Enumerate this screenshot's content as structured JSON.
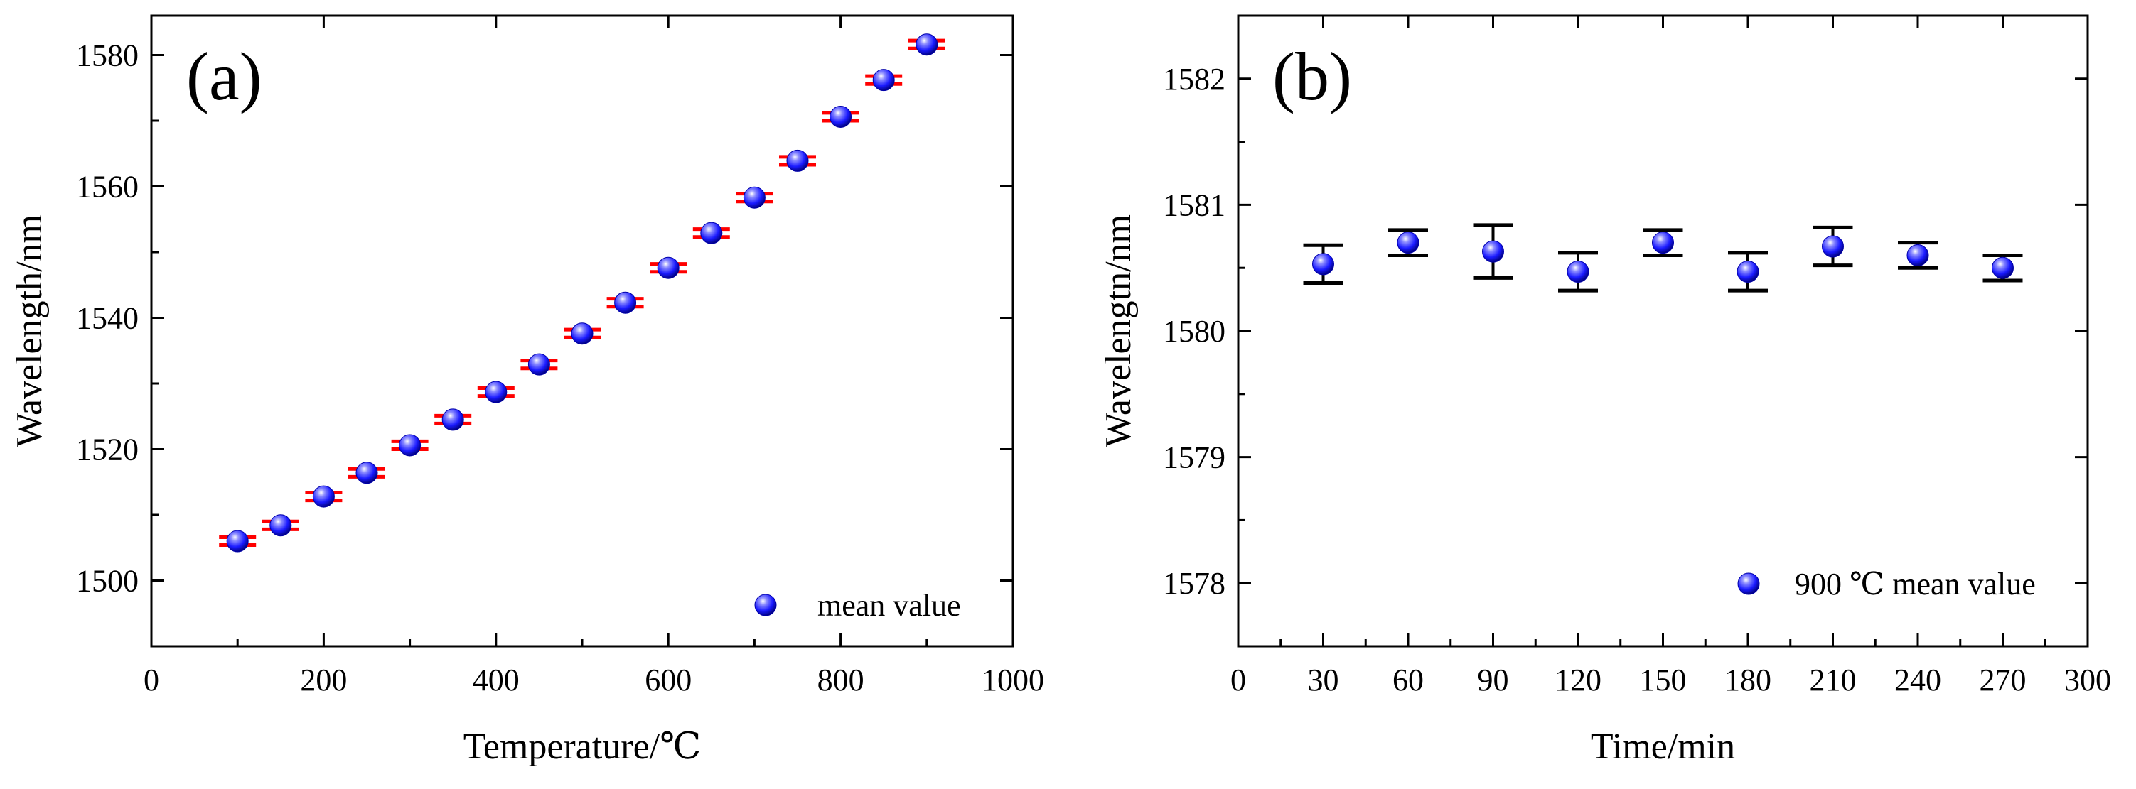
{
  "chart_data": [
    {
      "type": "scatter",
      "panel_label": "(a)",
      "xlabel": "Temperature/℃",
      "ylabel": "Wavelength/nm",
      "xlim": [
        0,
        1000
      ],
      "ylim": [
        1490,
        1586
      ],
      "x_ticks": [
        "0",
        "200",
        "400",
        "600",
        "800",
        "1000"
      ],
      "y_ticks": [
        "1500",
        "1520",
        "1540",
        "1560",
        "1580"
      ],
      "legend": "mean value",
      "legend_position": "bottom-right",
      "marker_color": "#1a1aff",
      "error_color": "#ff0000",
      "series": [
        {
          "name": "mean value",
          "x": [
            100,
            150,
            200,
            250,
            300,
            350,
            400,
            450,
            500,
            550,
            600,
            650,
            700,
            750,
            800,
            850,
            900
          ],
          "y": [
            1506.0,
            1508.4,
            1512.8,
            1516.4,
            1520.6,
            1524.5,
            1528.7,
            1532.9,
            1537.6,
            1542.3,
            1547.6,
            1552.9,
            1558.3,
            1563.9,
            1570.6,
            1576.2,
            1581.6
          ],
          "err": [
            0.6,
            0.6,
            0.6,
            0.6,
            0.6,
            0.6,
            0.6,
            0.6,
            0.6,
            0.6,
            0.6,
            0.6,
            0.6,
            0.6,
            0.6,
            0.6,
            0.6
          ]
        }
      ]
    },
    {
      "type": "scatter",
      "panel_label": "(b)",
      "xlabel": "Time/min",
      "ylabel": "Wavelengtn/nm",
      "xlim": [
        0,
        300
      ],
      "ylim": [
        1577.5,
        1582.5
      ],
      "x_ticks": [
        "0",
        "30",
        "60",
        "90",
        "120",
        "150",
        "180",
        "210",
        "240",
        "270",
        "300"
      ],
      "y_ticks": [
        "1578",
        "1579",
        "1580",
        "1581",
        "1582"
      ],
      "legend": "900 ℃ mean value",
      "legend_position": "bottom-right",
      "marker_color": "#1a1aff",
      "error_color": "#000000",
      "series": [
        {
          "name": "900 ℃ mean value",
          "x": [
            30,
            60,
            90,
            120,
            150,
            180,
            210,
            240,
            270
          ],
          "y": [
            1580.53,
            1580.7,
            1580.63,
            1580.47,
            1580.7,
            1580.47,
            1580.67,
            1580.6,
            1580.5
          ],
          "err": [
            0.15,
            0.1,
            0.21,
            0.15,
            0.1,
            0.15,
            0.15,
            0.1,
            0.1
          ]
        }
      ]
    }
  ]
}
